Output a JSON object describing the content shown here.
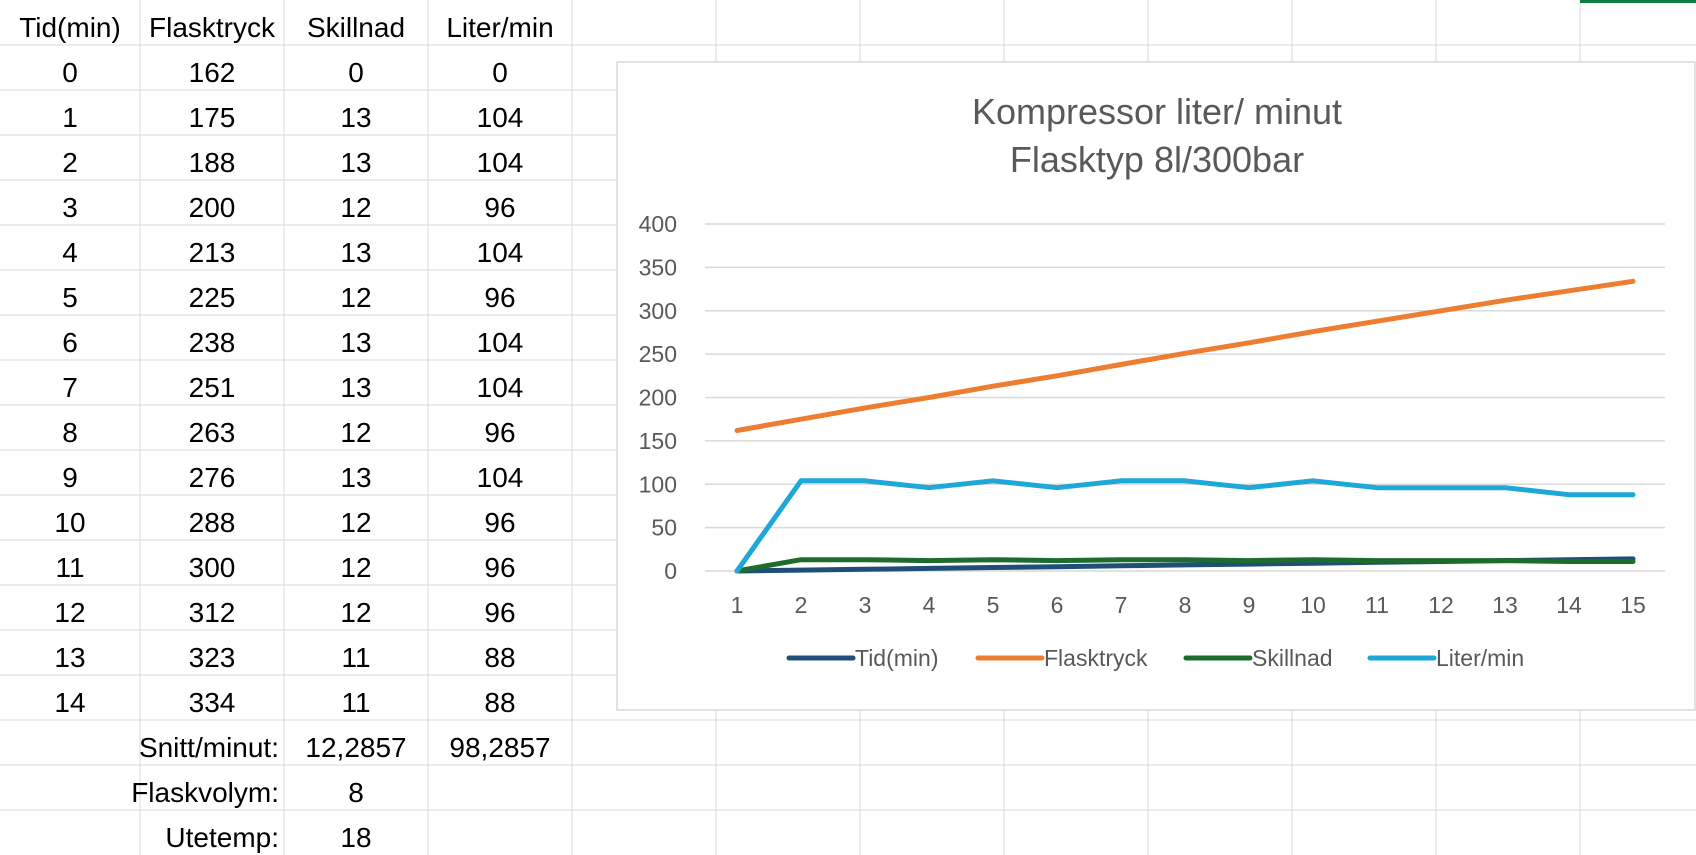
{
  "sheet": {
    "headers": [
      "Tid(min)",
      "Flasktryck",
      "Skillnad",
      "Liter/min"
    ],
    "rows": [
      [
        "0",
        "162",
        "0",
        "0"
      ],
      [
        "1",
        "175",
        "13",
        "104"
      ],
      [
        "2",
        "188",
        "13",
        "104"
      ],
      [
        "3",
        "200",
        "12",
        "96"
      ],
      [
        "4",
        "213",
        "13",
        "104"
      ],
      [
        "5",
        "225",
        "12",
        "96"
      ],
      [
        "6",
        "238",
        "13",
        "104"
      ],
      [
        "7",
        "251",
        "13",
        "104"
      ],
      [
        "8",
        "263",
        "12",
        "96"
      ],
      [
        "9",
        "276",
        "13",
        "104"
      ],
      [
        "10",
        "288",
        "12",
        "96"
      ],
      [
        "11",
        "300",
        "12",
        "96"
      ],
      [
        "12",
        "312",
        "12",
        "96"
      ],
      [
        "13",
        "323",
        "11",
        "88"
      ],
      [
        "14",
        "334",
        "11",
        "88"
      ]
    ],
    "summary": [
      {
        "label": "Snitt/minut:",
        "values": [
          "12,2857",
          "98,2857"
        ]
      },
      {
        "label": "Flaskvolym:",
        "values": [
          "8"
        ]
      },
      {
        "label": "Utetemp:",
        "values": [
          "18"
        ]
      }
    ]
  },
  "chart_data": {
    "type": "line",
    "title": [
      "Kompressor liter/ minut",
      "Flasktyp 8l/300bar"
    ],
    "categories": [
      "1",
      "2",
      "3",
      "4",
      "5",
      "6",
      "7",
      "8",
      "9",
      "10",
      "11",
      "12",
      "13",
      "14",
      "15"
    ],
    "ylim": [
      0,
      400
    ],
    "yticks": [
      "0",
      "50",
      "100",
      "150",
      "200",
      "250",
      "300",
      "350",
      "400"
    ],
    "grid": true,
    "legend": "bottom",
    "series": [
      {
        "name": "Tid(min)",
        "color": "#1f4e79",
        "values": [
          0,
          1,
          2,
          3,
          4,
          5,
          6,
          7,
          8,
          9,
          10,
          11,
          12,
          13,
          14
        ]
      },
      {
        "name": "Flasktryck",
        "color": "#ed7d31",
        "values": [
          162,
          175,
          188,
          200,
          213,
          225,
          238,
          251,
          263,
          276,
          288,
          300,
          312,
          323,
          334
        ]
      },
      {
        "name": "Skillnad",
        "color": "#1e6b2e",
        "values": [
          0,
          13,
          13,
          12,
          13,
          12,
          13,
          13,
          12,
          13,
          12,
          12,
          12,
          11,
          11
        ]
      },
      {
        "name": "Liter/min",
        "color": "#1ea7d9",
        "values": [
          0,
          104,
          104,
          96,
          104,
          96,
          104,
          104,
          96,
          104,
          96,
          96,
          96,
          88,
          88
        ]
      }
    ]
  }
}
